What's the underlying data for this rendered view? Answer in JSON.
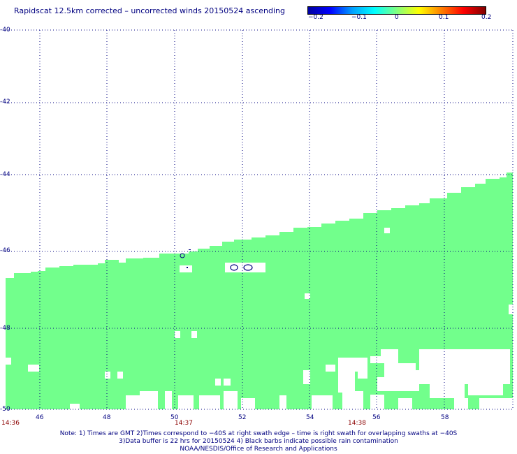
{
  "title": "Rapidscat 12.5km corrected – uncorrected winds 20150524 ascending",
  "colorbar": {
    "ticks": [
      "−0.2",
      "−0.1",
      "0",
      "0.1",
      "0.2"
    ],
    "colors": [
      "#0000a0",
      "#0000ff",
      "#00a0ff",
      "#00ffff",
      "#80ff80",
      "#ffff00",
      "#ff8000",
      "#ff0000",
      "#800000"
    ]
  },
  "map": {
    "lat_labels": [
      "-40",
      "-42",
      "-44",
      "-46",
      "-48",
      "-50"
    ],
    "lon_labels": [
      "46",
      "48",
      "50",
      "52",
      "54",
      "56",
      "58"
    ],
    "time_labels": [
      "14:36",
      "14:37",
      "14:38"
    ],
    "swath_color": "#72ff8c",
    "rain_barb_color": "#000080"
  },
  "notes": {
    "line1": "Note: 1) Times are GMT 2)Times correspond to −40S at right swath edge – time is right swath for overlapping swaths at −40S",
    "line2": "3)Data buffer is 22 hrs for 20150524 4) Black barbs indicate possible rain contamination",
    "line3": "NOAA/NESDIS/Office of Research and Applications"
  }
}
